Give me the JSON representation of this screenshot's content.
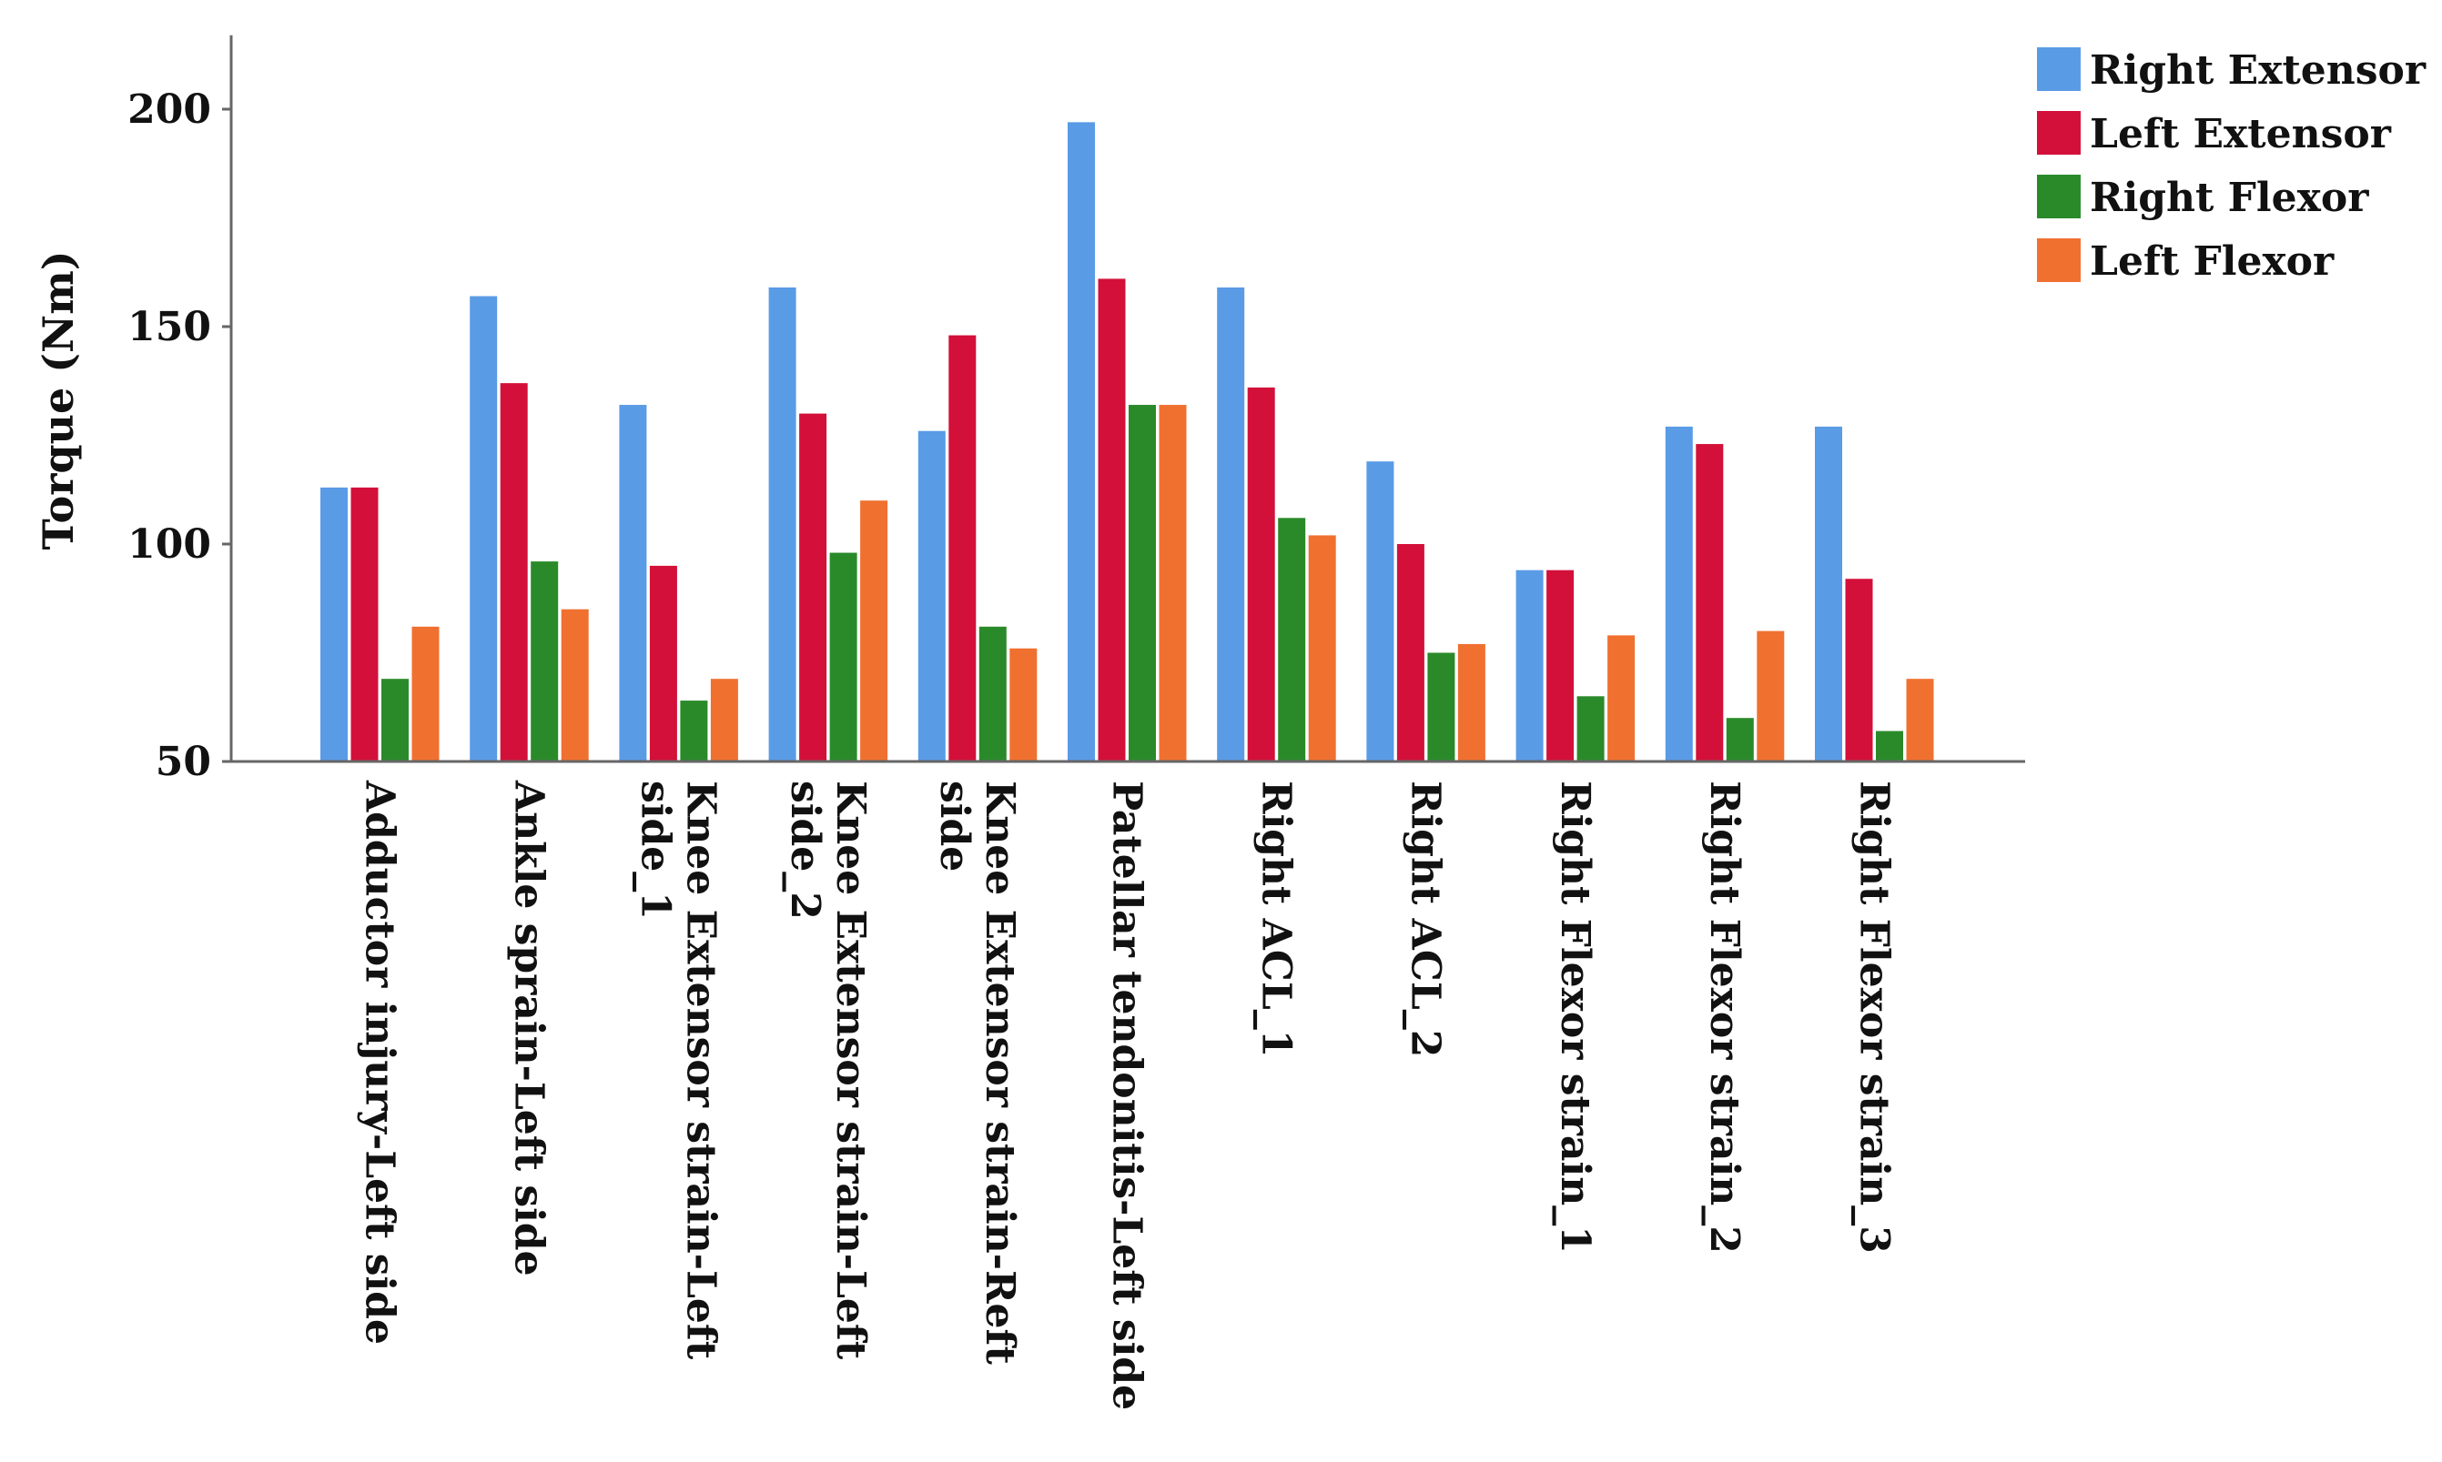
{
  "chart_data": {
    "type": "bar",
    "title": "",
    "xlabel": "",
    "ylabel": "Torque (Nm)",
    "ylim": [
      50,
      217
    ],
    "yticks": [
      50,
      100,
      150,
      200
    ],
    "grid": false,
    "legend_position": "top-right",
    "categories": [
      [
        "Adductor injury-Left side"
      ],
      [
        "Ankle sprain-Left side"
      ],
      [
        "Knee Extensor strain-Left",
        "side_1"
      ],
      [
        "Knee Extensor strain-Left",
        "side_2"
      ],
      [
        "Knee Extensor strain-Reft",
        "side"
      ],
      [
        "Patellar tendonitis-Left side"
      ],
      [
        "Right ACL_1"
      ],
      [
        "Right ACL_2"
      ],
      [
        "Right Flexor strain_1"
      ],
      [
        "Right Flexor strain_2"
      ],
      [
        "Right Flexor strain_3"
      ]
    ],
    "series": [
      {
        "name": "Right Extensor",
        "color": "#5a9be6",
        "values": [
          113,
          157,
          132,
          159,
          126,
          197,
          159,
          119,
          94,
          127,
          127
        ]
      },
      {
        "name": "Left Extensor",
        "color": "#d3103a",
        "values": [
          113,
          137,
          95,
          130,
          148,
          161,
          136,
          100,
          94,
          123,
          92
        ]
      },
      {
        "name": "Right Flexor",
        "color": "#2a8a2a",
        "values": [
          69,
          96,
          64,
          98,
          81,
          132,
          106,
          75,
          65,
          60,
          57
        ]
      },
      {
        "name": "Left Flexor",
        "color": "#f07030",
        "values": [
          81,
          85,
          69,
          110,
          76,
          132,
          102,
          77,
          79,
          80,
          69
        ]
      }
    ]
  }
}
